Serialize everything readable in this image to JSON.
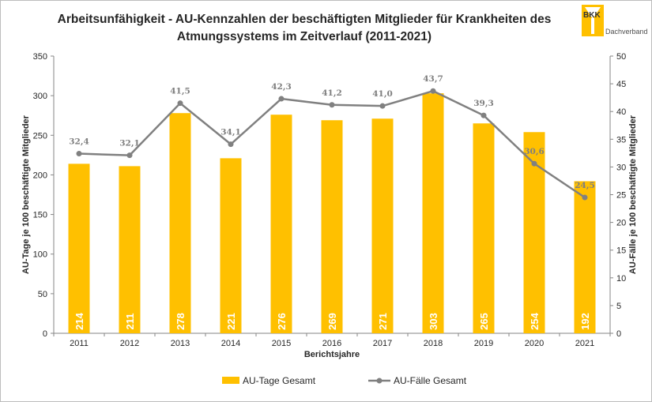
{
  "chart_data": {
    "type": "bar",
    "title": [
      "Arbeitsunfähigkeit - AU-Kennzahlen der beschäftigten Mitglieder für Krankheiten des",
      "Atmungssystems im Zeitverlauf (2011-2021)"
    ],
    "xlabel": "Berichtsjahre",
    "ylabel": "AU-Tage je 100 beschäftigte Mitglieder",
    "y2label": "AU-Fälle je 100 beschäftigte Mitglieder",
    "ylim": [
      0,
      350
    ],
    "y2lim": [
      0,
      50
    ],
    "yticks": [
      "0",
      "50",
      "100",
      "150",
      "200",
      "250",
      "300",
      "350"
    ],
    "y2ticks": [
      "0",
      "5",
      "10",
      "15",
      "20",
      "25",
      "30",
      "35",
      "40",
      "45",
      "50"
    ],
    "categories": [
      "2011",
      "2012",
      "2013",
      "2014",
      "2015",
      "2016",
      "2017",
      "2018",
      "2019",
      "2020",
      "2021"
    ],
    "series": [
      {
        "name": "AU-Tage Gesamt",
        "type": "bar",
        "axis": "left",
        "color": "#ffc000",
        "values": [
          214,
          211,
          278,
          221,
          276,
          269,
          271,
          303,
          265,
          254,
          192
        ],
        "labels": [
          "214",
          "211",
          "278",
          "221",
          "276",
          "269",
          "271",
          "303",
          "265",
          "254",
          "192"
        ]
      },
      {
        "name": "AU-Fälle Gesamt",
        "type": "line",
        "axis": "right",
        "color": "#808080",
        "values": [
          32.4,
          32.1,
          41.5,
          34.1,
          42.3,
          41.2,
          41.0,
          43.7,
          39.3,
          30.6,
          24.5
        ],
        "labels": [
          "32,4",
          "32,1",
          "41,5",
          "34,1",
          "42,3",
          "41,2",
          "41,0",
          "43,7",
          "39,3",
          "30,6",
          "24,5"
        ]
      }
    ],
    "legend": "bottom",
    "grid": false
  },
  "logo": {
    "text": "BKK",
    "subtext": "Dachverband"
  }
}
